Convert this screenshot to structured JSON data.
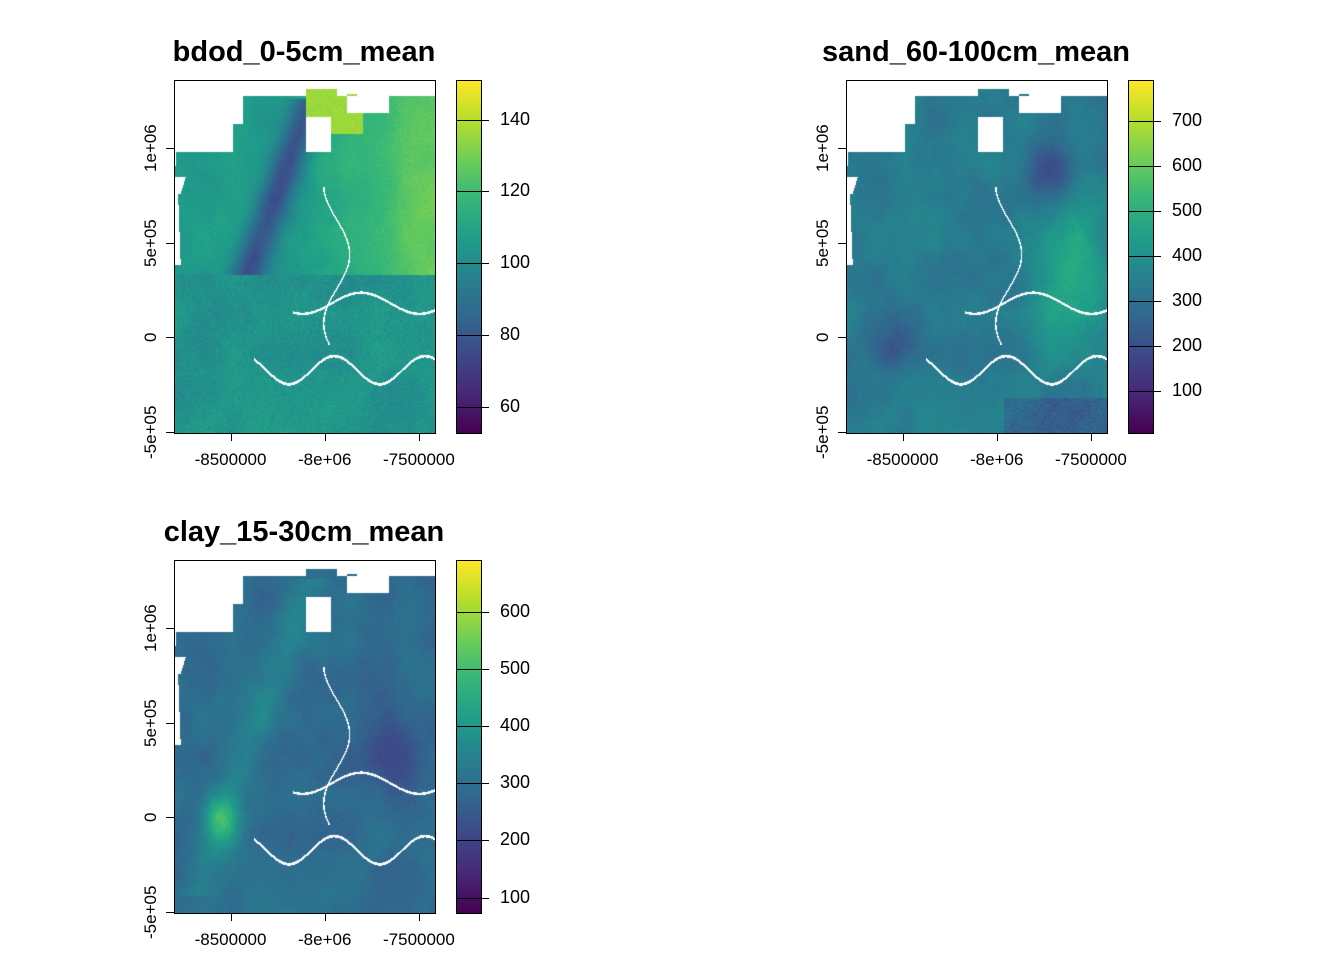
{
  "palette": [
    "#440154",
    "#482878",
    "#3e4989",
    "#31688e",
    "#26828e",
    "#1f9e89",
    "#35b779",
    "#6ece58",
    "#b5de2b",
    "#fde725"
  ],
  "x_axis": {
    "ticks": [
      "-8500000",
      "-8e+06",
      "-7500000"
    ],
    "values": [
      -8500000,
      -8000000,
      -7500000
    ]
  },
  "y_axis": {
    "ticks": [
      "-5e+05",
      "0",
      "5e+05",
      "1e+06"
    ],
    "values": [
      -500000,
      0,
      500000,
      1000000
    ]
  },
  "panels": [
    {
      "title": "bdod_0-5cm_mean",
      "legend": {
        "min": 53,
        "max": 151,
        "ticks": [
          60,
          80,
          100,
          120,
          140
        ],
        "labels": [
          "60",
          "80",
          "100",
          "120",
          "140"
        ]
      },
      "pattern": "bdod"
    },
    {
      "title": "sand_60-100cm_mean",
      "legend": {
        "min": 10,
        "max": 790,
        "ticks": [
          100,
          200,
          300,
          400,
          500,
          600,
          700
        ],
        "labels": [
          "100",
          "200",
          "300",
          "400",
          "500",
          "600",
          "700"
        ]
      },
      "pattern": "sand"
    },
    {
      "title": "clay_15-30cm_mean",
      "legend": {
        "min": 75,
        "max": 690,
        "ticks": [
          100,
          200,
          300,
          400,
          500,
          600
        ],
        "labels": [
          "100",
          "200",
          "300",
          "400",
          "500",
          "600"
        ]
      },
      "pattern": "clay"
    }
  ]
}
